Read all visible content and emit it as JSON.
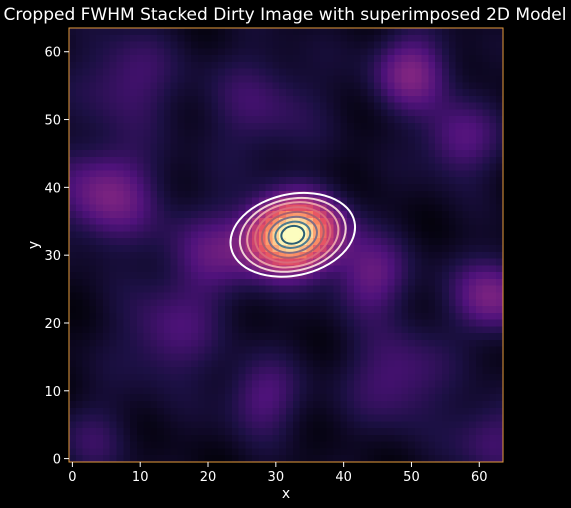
{
  "chart_data": {
    "type": "heatmap",
    "title": "Cropped FWHM Stacked Dirty Image with superimposed 2D Model",
    "xlabel": "x",
    "ylabel": "y",
    "xlim": [
      -0.5,
      63.5
    ],
    "ylim": [
      -0.5,
      63.5
    ],
    "xticks": [
      0,
      10,
      20,
      30,
      40,
      50,
      60
    ],
    "yticks": [
      0,
      10,
      20,
      30,
      40,
      50,
      60
    ],
    "colormap": "magma",
    "image_size": [
      64,
      64
    ],
    "source": {
      "x": 32.5,
      "y": 33,
      "peak": 1.0,
      "sigma_x": 4.6,
      "sigma_y": 3.6,
      "rotation_deg": 12
    },
    "background_blobs": [
      {
        "x": 5,
        "y": 39,
        "amp": 0.3,
        "sigma": 5
      },
      {
        "x": 44,
        "y": 27,
        "amp": 0.25,
        "sigma": 4
      },
      {
        "x": 62,
        "y": 24,
        "amp": 0.3,
        "sigma": 4
      },
      {
        "x": 50,
        "y": 57,
        "amp": 0.3,
        "sigma": 4
      },
      {
        "x": 57,
        "y": 47,
        "amp": 0.22,
        "sigma": 4
      },
      {
        "x": 20,
        "y": 30,
        "amp": 0.2,
        "sigma": 5
      },
      {
        "x": 28,
        "y": 9,
        "amp": 0.2,
        "sigma": 4
      },
      {
        "x": 14,
        "y": 18,
        "amp": 0.18,
        "sigma": 5
      },
      {
        "x": 8,
        "y": 56,
        "amp": 0.18,
        "sigma": 5
      },
      {
        "x": 48,
        "y": 12,
        "amp": 0.2,
        "sigma": 5
      },
      {
        "x": 62,
        "y": 3,
        "amp": 0.18,
        "sigma": 4
      },
      {
        "x": 28,
        "y": 52,
        "amp": 0.15,
        "sigma": 6
      },
      {
        "x": 3,
        "y": 3,
        "amp": 0.12,
        "sigma": 4
      }
    ],
    "model_contours": {
      "center": {
        "x": 32.5,
        "y": 33
      },
      "rotation_deg": 12,
      "levels": [
        {
          "a": 9.3,
          "b": 6.0,
          "color": "#ffffff"
        },
        {
          "a": 7.9,
          "b": 5.3,
          "color": "#f1d3d6"
        },
        {
          "a": 6.8,
          "b": 4.7,
          "color": "#e8a0a8"
        },
        {
          "a": 5.6,
          "b": 4.0,
          "color": "#d96a7a"
        },
        {
          "a": 4.6,
          "b": 3.3,
          "color": "#a9606f"
        },
        {
          "a": 3.6,
          "b": 2.6,
          "color": "#7e6f86"
        },
        {
          "a": 2.6,
          "b": 1.9,
          "color": "#4f7b8f"
        },
        {
          "a": 1.7,
          "b": 1.3,
          "color": "#2c5e74"
        }
      ]
    }
  }
}
